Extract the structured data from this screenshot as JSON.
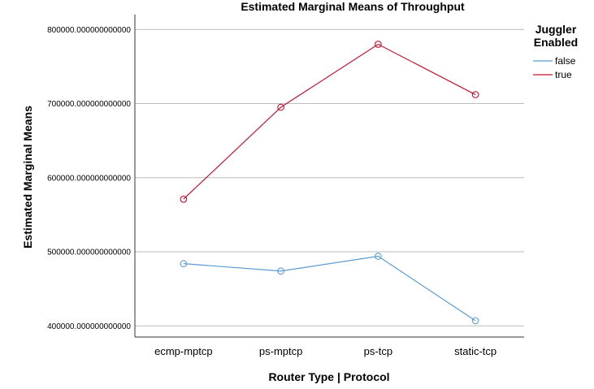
{
  "chart_data": {
    "type": "line",
    "title": "Estimated Marginal Means of Throughput",
    "xlabel": "Router Type | Protocol",
    "ylabel": "Estimated Marginal Means",
    "categories": [
      "ecmp-mptcp",
      "ps-mptcp",
      "ps-tcp",
      "static-tcp"
    ],
    "ylim": [
      385000,
      820000
    ],
    "yticks": [
      400000,
      500000,
      600000,
      700000,
      800000
    ],
    "ytick_labels": [
      "400000.000000000000",
      "500000.000000000000",
      "600000.000000000000",
      "700000.000000000000",
      "800000.000000000000"
    ],
    "grid": true,
    "legend_title": [
      "Juggler",
      "Enabled"
    ],
    "legend_position": "top-right",
    "series": [
      {
        "name": "false",
        "color": "#5b9bd5",
        "values": [
          484000,
          474000,
          494000,
          407000
        ]
      },
      {
        "name": "true",
        "color": "#c8102e",
        "values": [
          571000,
          695000,
          780000,
          712000
        ]
      }
    ]
  }
}
